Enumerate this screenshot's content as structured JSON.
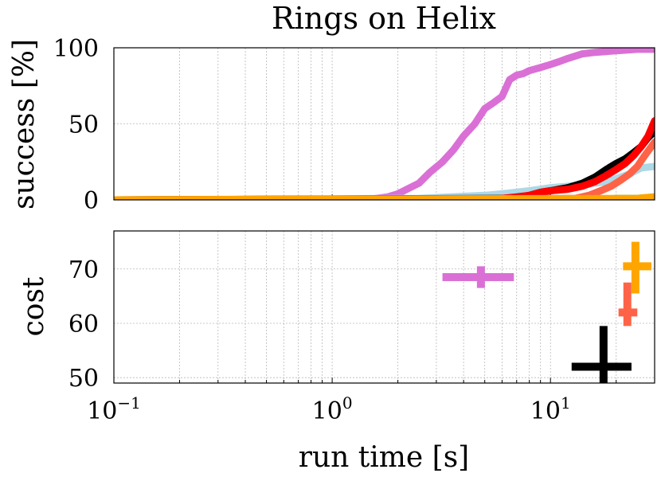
{
  "chart_data": [
    {
      "type": "line",
      "title": "Rings on Helix",
      "xlabel": "",
      "ylabel": "success [%]",
      "xscale": "log",
      "xlim": [
        0.1,
        30
      ],
      "ylim": [
        0,
        100
      ],
      "yticks": [
        0,
        50,
        100
      ],
      "grid": true,
      "series": [
        {
          "color": "#da70d6",
          "x": [
            0.1,
            1.4,
            1.6,
            1.8,
            2.0,
            2.2,
            2.5,
            2.8,
            3.2,
            3.6,
            4.0,
            4.5,
            5.0,
            5.5,
            6.0,
            6.5,
            7.0,
            7.5,
            8,
            9,
            10,
            11,
            12,
            14,
            16,
            20,
            25,
            30
          ],
          "y": [
            0,
            0,
            1,
            2,
            4,
            7,
            11,
            18,
            25,
            33,
            42,
            50,
            60,
            64,
            68,
            79,
            82,
            83,
            85,
            87,
            89,
            91,
            93,
            96,
            97,
            98,
            99,
            99
          ]
        },
        {
          "color": "#add8e6",
          "x": [
            0.1,
            2.5,
            3.5,
            5,
            6,
            7,
            8,
            9,
            10,
            12,
            14,
            16,
            18,
            20,
            23,
            26,
            30
          ],
          "y": [
            0,
            1,
            2,
            3,
            4,
            5,
            6,
            7,
            8,
            9,
            10,
            11,
            12,
            14,
            17,
            21,
            22
          ]
        },
        {
          "color": "#000000",
          "x": [
            0.1,
            7,
            8,
            9,
            10,
            12,
            14,
            16,
            18,
            20,
            22,
            24,
            26,
            28,
            30
          ],
          "y": [
            0,
            1,
            3,
            5,
            6,
            8,
            11,
            15,
            20,
            24,
            27,
            31,
            35,
            41,
            45
          ]
        },
        {
          "color": "#ff0000",
          "x": [
            0.1,
            5,
            6,
            7,
            8,
            9,
            10,
            12,
            14,
            16,
            18,
            20,
            22,
            24,
            26,
            28,
            30
          ],
          "y": [
            0,
            0,
            1,
            2,
            3,
            5,
            6,
            7,
            9,
            12,
            16,
            20,
            24,
            29,
            35,
            42,
            52
          ]
        },
        {
          "color": "#ff6347",
          "x": [
            0.1,
            13,
            15,
            17,
            19,
            21,
            23,
            25,
            27,
            30
          ],
          "y": [
            0,
            1,
            3,
            6,
            9,
            13,
            17,
            22,
            29,
            38
          ]
        },
        {
          "color": "#7ec850",
          "x": [
            0.1,
            17,
            20,
            25,
            30
          ],
          "y": [
            0,
            0,
            1,
            1,
            2
          ]
        },
        {
          "color": "#ffa500",
          "x": [
            0.1,
            25,
            30
          ],
          "y": [
            0,
            1,
            2
          ]
        }
      ]
    },
    {
      "type": "scatter",
      "xlabel": "run time [s]",
      "ylabel": "cost",
      "xscale": "log",
      "xlim": [
        0.1,
        30
      ],
      "ylim": [
        49,
        77
      ],
      "yticks": [
        50,
        60,
        70
      ],
      "xticks": [
        0.1,
        1,
        10
      ],
      "xtick_labels": [
        {
          "base": "10",
          "exp": "−1"
        },
        {
          "base": "10",
          "exp": "0"
        },
        {
          "base": "10",
          "exp": "1"
        }
      ],
      "grid": true,
      "points": [
        {
          "color": "#da70d6",
          "x": 4.8,
          "y": 68.5,
          "xerr": [
            3.2,
            6.8
          ],
          "yerr": [
            66.5,
            70.5
          ]
        },
        {
          "color": "#ffa500",
          "x": 24.5,
          "y": 70.5,
          "xerr": [
            21.5,
            29
          ],
          "yerr": [
            65.5,
            75
          ]
        },
        {
          "color": "#ff6347",
          "x": 22.5,
          "y": 62,
          "xerr": [
            20.5,
            25
          ],
          "yerr": [
            59.5,
            67.5
          ]
        },
        {
          "color": "#000000",
          "x": 17.5,
          "y": 52,
          "xerr": [
            12.5,
            23.5
          ],
          "yerr": [
            48.5,
            59.5
          ]
        }
      ]
    }
  ]
}
